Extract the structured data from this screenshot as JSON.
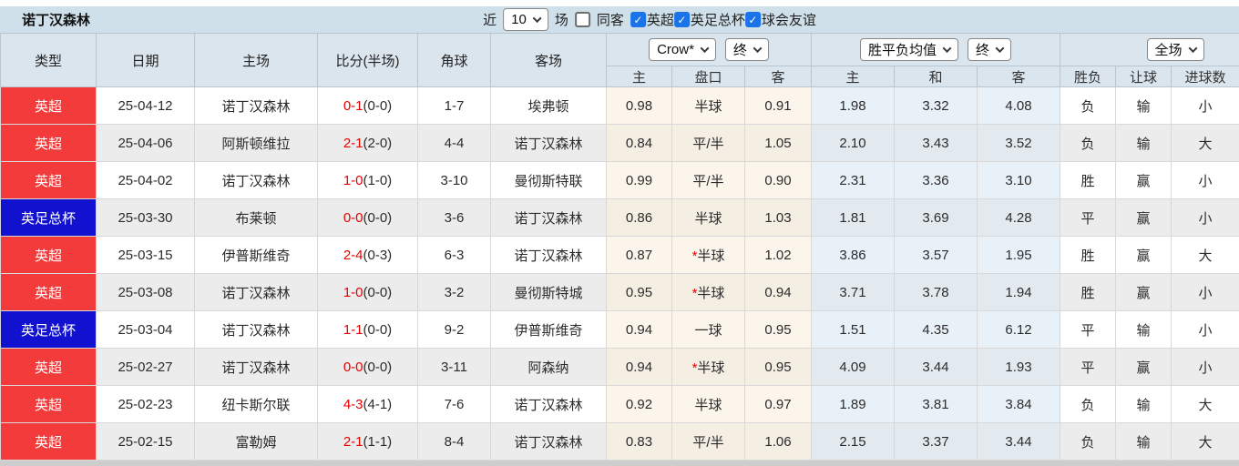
{
  "colors": {
    "topbar_bg": "#cfe0ea",
    "header_bg": "#dae5ee",
    "league_red": "#f43b3b",
    "league_blue": "#1111cf",
    "self_team_green": "#3aa152",
    "score_red": "#e60000",
    "win_red": "#e05555",
    "draw_blue": "#5b5be0",
    "lose_green": "#5f9e63",
    "big_light_red": "#ee8080",
    "asia_odds_col_bg": "#fbf5eb",
    "europe_odds_col_bg": "#e9f1f8",
    "checkbox_blue": "#1a73e8"
  },
  "topbar": {
    "title": "诺丁汉森林",
    "recent_label": "近",
    "recent_value": "10",
    "matches_label": "场",
    "same_venue_label": "同客",
    "same_venue_checked": false,
    "filters": [
      {
        "label": "英超",
        "checked": true
      },
      {
        "label": "英足总杯",
        "checked": true
      },
      {
        "label": "球会友谊",
        "checked": true
      }
    ]
  },
  "header": {
    "col_type": "类型",
    "col_date": "日期",
    "col_home": "主场",
    "col_score": "比分(半场)",
    "col_corner": "角球",
    "col_away": "客场",
    "bookmaker_select": "Crow*",
    "asia_time_select": "终",
    "europe_select": "胜平负均值",
    "europe_time_select": "终",
    "scope_select": "全场",
    "sub_asia_home": "主",
    "sub_asia_handicap": "盘口",
    "sub_asia_away": "客",
    "sub_eu_home": "主",
    "sub_eu_draw": "和",
    "sub_eu_away": "客",
    "sub_result": "胜负",
    "sub_cover": "让球",
    "sub_goals": "进球数"
  },
  "rows": [
    {
      "league": "英超",
      "league_color": "red",
      "date": "25-04-12",
      "home": "诺丁汉森林",
      "home_is_self": true,
      "score": "0-1",
      "half": "(0-0)",
      "corner": "1-7",
      "away": "埃弗顿",
      "away_is_self": false,
      "asia_home": "0.98",
      "handicap_star": false,
      "handicap": "半球",
      "asia_away": "0.91",
      "eu_home": "1.98",
      "eu_draw": "3.32",
      "eu_away": "4.08",
      "result": "负",
      "result_color": "green",
      "cover": "输",
      "cover_color": "green",
      "goals": "小",
      "goals_color": "green"
    },
    {
      "league": "英超",
      "league_color": "red",
      "date": "25-04-06",
      "home": "阿斯顿维拉",
      "home_is_self": false,
      "score": "2-1",
      "half": "(2-0)",
      "corner": "4-4",
      "away": "诺丁汉森林",
      "away_is_self": true,
      "asia_home": "0.84",
      "handicap_star": false,
      "handicap": "平/半",
      "asia_away": "1.05",
      "eu_home": "2.10",
      "eu_draw": "3.43",
      "eu_away": "3.52",
      "result": "负",
      "result_color": "green",
      "cover": "输",
      "cover_color": "green",
      "goals": "大",
      "goals_color": "lred"
    },
    {
      "league": "英超",
      "league_color": "red",
      "date": "25-04-02",
      "home": "诺丁汉森林",
      "home_is_self": true,
      "score": "1-0",
      "half": "(1-0)",
      "corner": "3-10",
      "away": "曼彻斯特联",
      "away_is_self": false,
      "asia_home": "0.99",
      "handicap_star": false,
      "handicap": "平/半",
      "asia_away": "0.90",
      "eu_home": "2.31",
      "eu_draw": "3.36",
      "eu_away": "3.10",
      "result": "胜",
      "result_color": "red",
      "cover": "赢",
      "cover_color": "red",
      "goals": "小",
      "goals_color": "green"
    },
    {
      "league": "英足总杯",
      "league_color": "blue",
      "date": "25-03-30",
      "home": "布莱顿",
      "home_is_self": false,
      "score": "0-0",
      "half": "(0-0)",
      "corner": "3-6",
      "away": "诺丁汉森林",
      "away_is_self": true,
      "asia_home": "0.86",
      "handicap_star": false,
      "handicap": "半球",
      "asia_away": "1.03",
      "eu_home": "1.81",
      "eu_draw": "3.69",
      "eu_away": "4.28",
      "result": "平",
      "result_color": "blue",
      "cover": "赢",
      "cover_color": "red",
      "goals": "小",
      "goals_color": "green"
    },
    {
      "league": "英超",
      "league_color": "red",
      "date": "25-03-15",
      "home": "伊普斯维奇",
      "home_is_self": false,
      "score": "2-4",
      "half": "(0-3)",
      "corner": "6-3",
      "away": "诺丁汉森林",
      "away_is_self": true,
      "asia_home": "0.87",
      "handicap_star": true,
      "handicap": "半球",
      "asia_away": "1.02",
      "eu_home": "3.86",
      "eu_draw": "3.57",
      "eu_away": "1.95",
      "result": "胜",
      "result_color": "red",
      "cover": "赢",
      "cover_color": "red",
      "goals": "大",
      "goals_color": "lred"
    },
    {
      "league": "英超",
      "league_color": "red",
      "date": "25-03-08",
      "home": "诺丁汉森林",
      "home_is_self": true,
      "score": "1-0",
      "half": "(0-0)",
      "corner": "3-2",
      "away": "曼彻斯特城",
      "away_is_self": false,
      "asia_home": "0.95",
      "handicap_star": true,
      "handicap": "半球",
      "asia_away": "0.94",
      "eu_home": "3.71",
      "eu_draw": "3.78",
      "eu_away": "1.94",
      "result": "胜",
      "result_color": "red",
      "cover": "赢",
      "cover_color": "red",
      "goals": "小",
      "goals_color": "green"
    },
    {
      "league": "英足总杯",
      "league_color": "blue",
      "date": "25-03-04",
      "home": "诺丁汉森林",
      "home_is_self": true,
      "score": "1-1",
      "half": "(0-0)",
      "corner": "9-2",
      "away": "伊普斯维奇",
      "away_is_self": false,
      "asia_home": "0.94",
      "handicap_star": false,
      "handicap": "一球",
      "asia_away": "0.95",
      "eu_home": "1.51",
      "eu_draw": "4.35",
      "eu_away": "6.12",
      "result": "平",
      "result_color": "blue",
      "cover": "输",
      "cover_color": "green",
      "goals": "小",
      "goals_color": "green"
    },
    {
      "league": "英超",
      "league_color": "red",
      "date": "25-02-27",
      "home": "诺丁汉森林",
      "home_is_self": true,
      "score": "0-0",
      "half": "(0-0)",
      "corner": "3-11",
      "away": "阿森纳",
      "away_is_self": false,
      "asia_home": "0.94",
      "handicap_star": true,
      "handicap": "半球",
      "asia_away": "0.95",
      "eu_home": "4.09",
      "eu_draw": "3.44",
      "eu_away": "1.93",
      "result": "平",
      "result_color": "blue",
      "cover": "赢",
      "cover_color": "red",
      "goals": "小",
      "goals_color": "green"
    },
    {
      "league": "英超",
      "league_color": "red",
      "date": "25-02-23",
      "home": "纽卡斯尔联",
      "home_is_self": false,
      "score": "4-3",
      "half": "(4-1)",
      "corner": "7-6",
      "away": "诺丁汉森林",
      "away_is_self": true,
      "asia_home": "0.92",
      "handicap_star": false,
      "handicap": "半球",
      "asia_away": "0.97",
      "eu_home": "1.89",
      "eu_draw": "3.81",
      "eu_away": "3.84",
      "result": "负",
      "result_color": "green",
      "cover": "输",
      "cover_color": "green",
      "goals": "大",
      "goals_color": "lred"
    },
    {
      "league": "英超",
      "league_color": "red",
      "date": "25-02-15",
      "home": "富勒姆",
      "home_is_self": false,
      "score": "2-1",
      "half": "(1-1)",
      "corner": "8-4",
      "away": "诺丁汉森林",
      "away_is_self": true,
      "asia_home": "0.83",
      "handicap_star": false,
      "handicap": "平/半",
      "asia_away": "1.06",
      "eu_home": "2.15",
      "eu_draw": "3.37",
      "eu_away": "3.44",
      "result": "负",
      "result_color": "green",
      "cover": "输",
      "cover_color": "green",
      "goals": "大",
      "goals_color": "lred"
    }
  ]
}
